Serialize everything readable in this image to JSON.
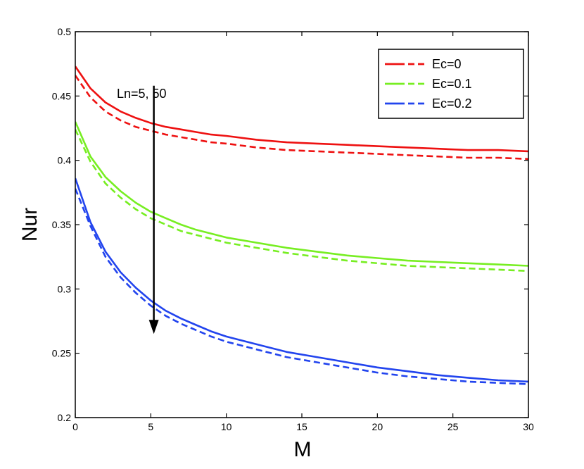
{
  "chart_data": {
    "type": "line",
    "title": "",
    "xlabel": "M",
    "ylabel": "Nur",
    "xlim": [
      0,
      30
    ],
    "ylim": [
      0.2,
      0.5
    ],
    "xticks": [
      0,
      5,
      10,
      15,
      20,
      25,
      30
    ],
    "xtick_labels": [
      "0",
      "5",
      "10",
      "15",
      "20",
      "25",
      "30"
    ],
    "yticks": [
      0.2,
      0.25,
      0.3,
      0.35,
      0.4,
      0.45,
      0.5
    ],
    "ytick_labels": [
      "0.2",
      "0.25",
      "0.3",
      "0.35",
      "0.4",
      "0.45",
      "0.5"
    ],
    "grid": false,
    "legend_position": "top-right",
    "legend": [
      {
        "label": "Ec=0",
        "color": "#ee1111"
      },
      {
        "label": "Ec=0.1",
        "color": "#77ee22"
      },
      {
        "label": "Ec=0.2",
        "color": "#2244ee"
      }
    ],
    "annotation": {
      "text": "Ln=5, 50",
      "arrow_x": 5.2,
      "arrow_y_start": 0.458,
      "arrow_y_end": 0.265
    },
    "x": [
      0,
      1,
      2,
      3,
      4,
      5,
      6,
      7,
      8,
      9,
      10,
      12,
      14,
      16,
      18,
      20,
      22,
      24,
      26,
      28,
      30
    ],
    "series": [
      {
        "name": "Ec=0, Ln=5",
        "group": "Ec=0",
        "color": "#ee1111",
        "dash": "solid",
        "values": [
          0.473,
          0.456,
          0.445,
          0.438,
          0.433,
          0.429,
          0.426,
          0.424,
          0.422,
          0.42,
          0.419,
          0.416,
          0.414,
          0.413,
          0.412,
          0.411,
          0.41,
          0.409,
          0.408,
          0.408,
          0.407
        ]
      },
      {
        "name": "Ec=0, Ln=50",
        "group": "Ec=0",
        "color": "#ee1111",
        "dash": "dashed",
        "values": [
          0.466,
          0.449,
          0.438,
          0.431,
          0.426,
          0.423,
          0.42,
          0.418,
          0.416,
          0.414,
          0.413,
          0.41,
          0.408,
          0.407,
          0.406,
          0.405,
          0.404,
          0.403,
          0.402,
          0.402,
          0.401
        ]
      },
      {
        "name": "Ec=0.1, Ln=5",
        "group": "Ec=0.1",
        "color": "#77ee22",
        "dash": "solid",
        "values": [
          0.43,
          0.403,
          0.387,
          0.376,
          0.367,
          0.36,
          0.355,
          0.35,
          0.346,
          0.343,
          0.34,
          0.336,
          0.332,
          0.329,
          0.326,
          0.324,
          0.322,
          0.321,
          0.32,
          0.319,
          0.318
        ]
      },
      {
        "name": "Ec=0.1, Ln=50",
        "group": "Ec=0.1",
        "color": "#77ee22",
        "dash": "dashed",
        "values": [
          0.424,
          0.399,
          0.382,
          0.371,
          0.362,
          0.355,
          0.35,
          0.345,
          0.342,
          0.339,
          0.336,
          0.332,
          0.328,
          0.325,
          0.322,
          0.32,
          0.318,
          0.317,
          0.316,
          0.315,
          0.314
        ]
      },
      {
        "name": "Ec=0.2, Ln=5",
        "group": "Ec=0.2",
        "color": "#2244ee",
        "dash": "solid",
        "values": [
          0.386,
          0.352,
          0.329,
          0.313,
          0.301,
          0.291,
          0.283,
          0.277,
          0.272,
          0.267,
          0.263,
          0.257,
          0.251,
          0.247,
          0.243,
          0.239,
          0.236,
          0.233,
          0.231,
          0.229,
          0.228
        ]
      },
      {
        "name": "Ec=0.2, Ln=50",
        "group": "Ec=0.2",
        "color": "#2244ee",
        "dash": "dashed",
        "values": [
          0.378,
          0.349,
          0.325,
          0.309,
          0.297,
          0.287,
          0.279,
          0.273,
          0.268,
          0.263,
          0.259,
          0.253,
          0.247,
          0.243,
          0.239,
          0.235,
          0.232,
          0.23,
          0.228,
          0.227,
          0.226
        ]
      }
    ]
  }
}
